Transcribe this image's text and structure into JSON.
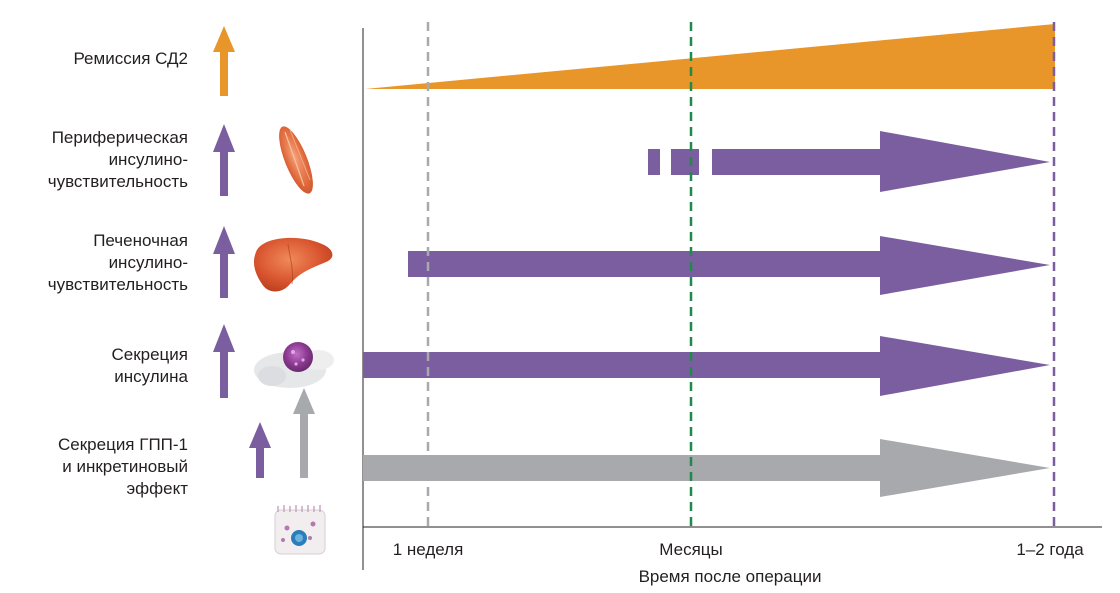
{
  "rows": [
    {
      "key": "remission",
      "label": "Ремиссия СД2",
      "arrow_color": "#e8962a"
    },
    {
      "key": "peripheral",
      "label": "Периферическая\nинсулино-\nчувствительность",
      "arrow_color": "#7a5ea0",
      "icon": "muscle-icon"
    },
    {
      "key": "hepatic",
      "label": "Печеночная\nинсулино-\nчувствительность",
      "arrow_color": "#7a5ea0",
      "icon": "liver-icon"
    },
    {
      "key": "insulin",
      "label": "Секреция\nинсулина",
      "arrow_color": "#7a5ea0",
      "icon": "pancreatic-islet-icon"
    },
    {
      "key": "glp1",
      "label": "Секреция ГПП-1\nи инкретиновый\nэффект",
      "arrow_color": "#7a5ea0",
      "secondary_arrow_color": "#a7a9ac",
      "icon": "intestinal-cell-icon"
    }
  ],
  "timeline": {
    "ticks": [
      "1 неделя",
      "Месяцы",
      "1–2 года"
    ],
    "axis_title": "Время после операции",
    "tick_line_colors": [
      "#a7a9ac",
      "#1f8a4c",
      "#7a5ea0"
    ]
  },
  "colors": {
    "orange": "#e8962a",
    "purple": "#7a5ea0",
    "gray": "#a7a9ac",
    "green": "#1f8a4c",
    "text": "#231f20"
  }
}
